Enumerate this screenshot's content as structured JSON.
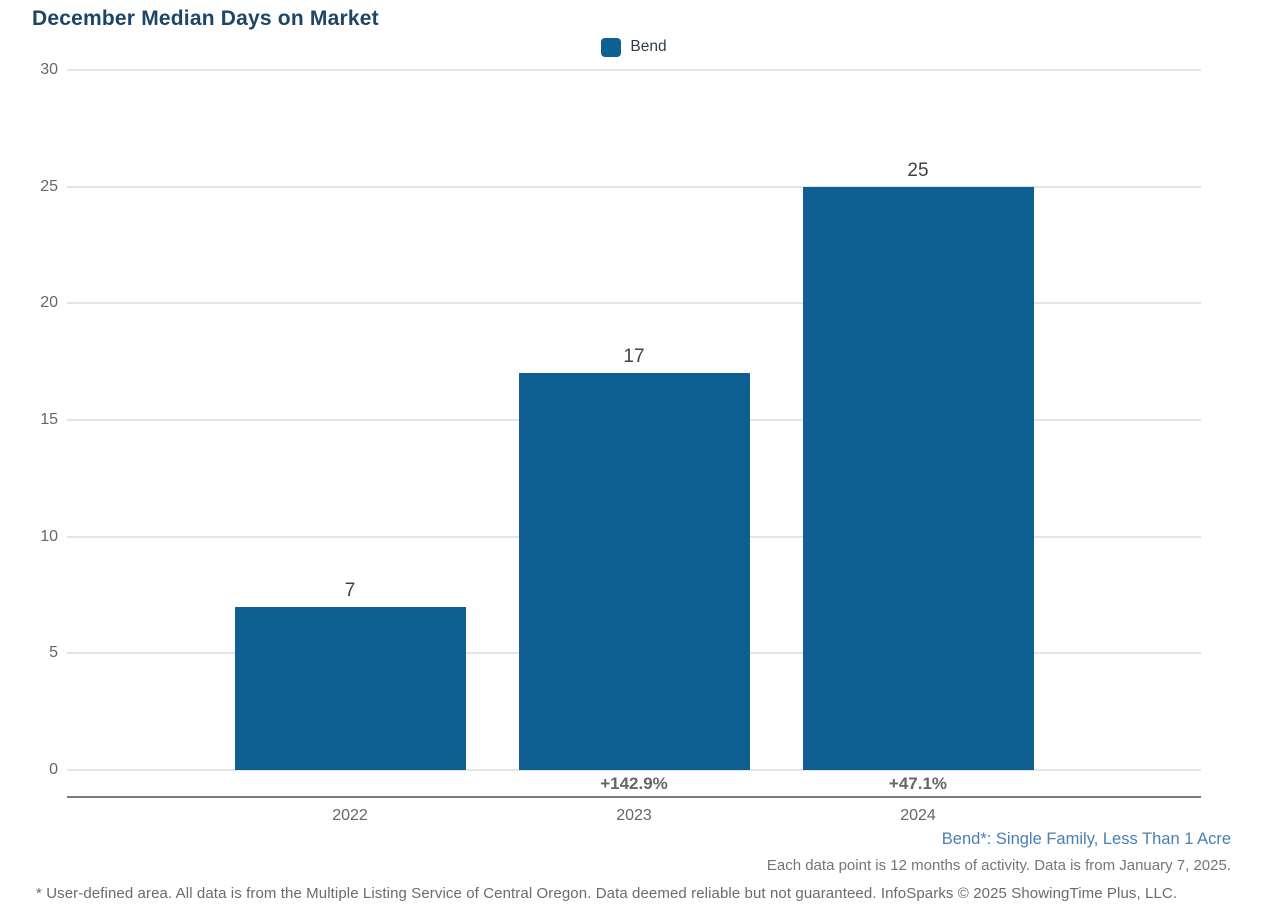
{
  "title": "December Median Days on Market",
  "legend": {
    "label": "Bend",
    "swatch_color": "#0e5f92"
  },
  "chart_data": {
    "type": "bar",
    "title": "December Median Days on Market",
    "series_name": "Bend",
    "categories": [
      "2022",
      "2023",
      "2024"
    ],
    "values": [
      7,
      17,
      25
    ],
    "value_labels": [
      "7",
      "17",
      "25"
    ],
    "pct_change_labels": [
      "",
      "+142.9%",
      "+47.1%"
    ],
    "xlabel": "",
    "ylabel": "",
    "ylim": [
      0,
      30
    ],
    "yticks": [
      0,
      5,
      10,
      15,
      20,
      25,
      30
    ],
    "grid": true,
    "legend_position": "top-center",
    "bar_color": "#0e5f92"
  },
  "notes": {
    "series_note": "Bend*: Single Family, Less Than 1 Acre",
    "data_note": "Each data point is 12 months of activity. Data is from January 7, 2025.",
    "footer": "* User-defined area. All data is from the Multiple Listing Service of Central Oregon. Data deemed reliable but not guaranteed. InfoSparks © 2025 ShowingTime Plus, LLC."
  },
  "colors": {
    "title": "#1c4566",
    "bar": "#0e5f92",
    "gridline": "#e4e4e4",
    "axis_line": "#7d7d7d",
    "tick_label": "#666666",
    "value_label": "#424242",
    "series_note": "#4a7fb0",
    "gray_note": "#757575"
  }
}
